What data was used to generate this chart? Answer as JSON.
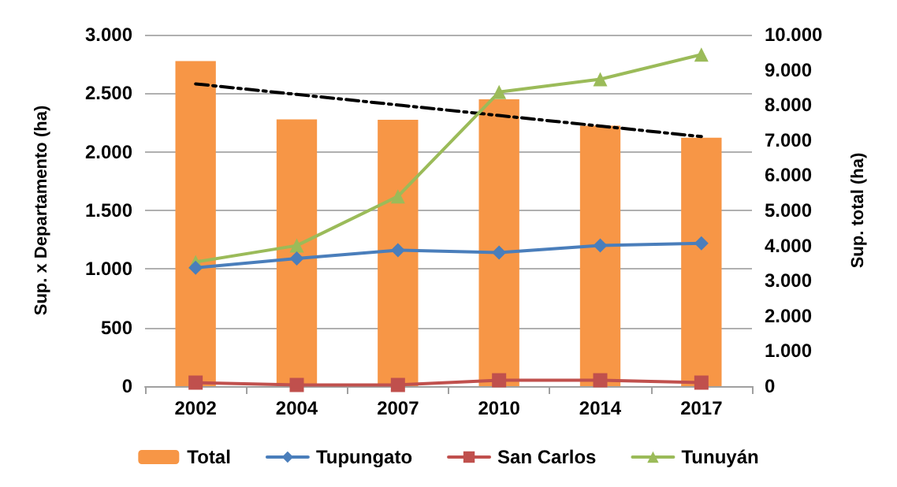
{
  "chart_data": {
    "type": "bar",
    "categories": [
      "2002",
      "2004",
      "2007",
      "2010",
      "2014",
      "2017"
    ],
    "ylabel": "Sup. x Departamento (ha)",
    "y2label": "Sup. total (ha)",
    "ylim": [
      0,
      3000
    ],
    "yticks": [
      {
        "value": 0,
        "label": "0"
      },
      {
        "value": 500,
        "label": "500"
      },
      {
        "value": 1000,
        "label": "1.000"
      },
      {
        "value": 1500,
        "label": "1.500"
      },
      {
        "value": 2000,
        "label": "2.000"
      },
      {
        "value": 2500,
        "label": "2.500"
      },
      {
        "value": 3000,
        "label": "3.000"
      }
    ],
    "y2lim": [
      0,
      10000
    ],
    "y2ticks": [
      {
        "value": 0,
        "label": "0"
      },
      {
        "value": 1000,
        "label": "1.000"
      },
      {
        "value": 2000,
        "label": "2.000"
      },
      {
        "value": 3000,
        "label": "3.000"
      },
      {
        "value": 4000,
        "label": "4.000"
      },
      {
        "value": 5000,
        "label": "5.000"
      },
      {
        "value": 6000,
        "label": "6.000"
      },
      {
        "value": 7000,
        "label": "7.000"
      },
      {
        "value": 8000,
        "label": "8.000"
      },
      {
        "value": 9000,
        "label": "9.000"
      },
      {
        "value": 10000,
        "label": "10.000"
      }
    ],
    "grid": "y",
    "legend": "bottom",
    "series": [
      {
        "name": "Total",
        "axis": "y2",
        "color": "#f79646",
        "values": [
          9250,
          7590,
          7580,
          8160,
          7410,
          7070
        ]
      },
      {
        "name": "Tupungato",
        "type": "line",
        "marker": "diamond",
        "color": "#4a7ebb",
        "values": [
          1010,
          1090,
          1160,
          1140,
          1200,
          1220
        ]
      },
      {
        "name": "San Carlos",
        "type": "line",
        "marker": "square",
        "color": "#c0504d",
        "values": [
          30,
          10,
          10,
          50,
          50,
          30
        ]
      },
      {
        "name": "Tunuyán",
        "type": "line",
        "marker": "triangle",
        "color": "#9bbb59",
        "values": [
          1060,
          1200,
          1620,
          2510,
          2620,
          2830
        ]
      },
      {
        "type": "line",
        "axis": "y2",
        "marker": "none",
        "line_style": "dashed",
        "color": "#000000",
        "values": [
          8600,
          8300,
          8000,
          7700,
          7400,
          7100
        ]
      }
    ]
  }
}
